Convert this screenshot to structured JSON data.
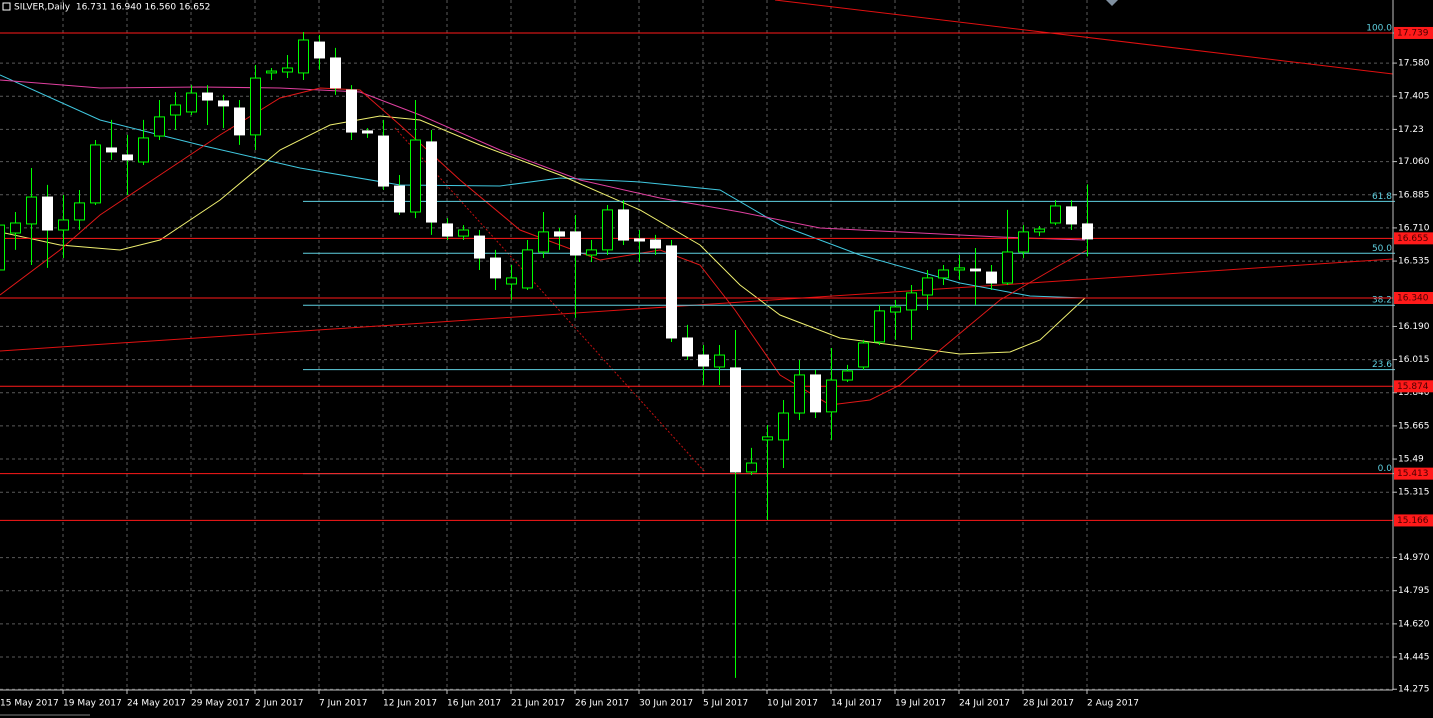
{
  "chart_data": {
    "type": "candlestick",
    "header": "SILVER,Daily  16.731 16.940 16.560 16.652",
    "categories": [
      "15 May 2017",
      null,
      null,
      null,
      "19 May 2017",
      null,
      null,
      null,
      "24 May 2017",
      null,
      null,
      null,
      "29 May 2017",
      null,
      null,
      null,
      "2 Jun 2017",
      null,
      null,
      null,
      "7 Jun 2017",
      null,
      null,
      null,
      "12 Jun 2017",
      null,
      null,
      null,
      "16 Jun 2017",
      null,
      null,
      null,
      "21 Jun 2017",
      null,
      null,
      null,
      "26 Jun 2017",
      null,
      null,
      null,
      "30 Jun 2017",
      null,
      null,
      null,
      "5 Jul 2017",
      null,
      null,
      null,
      "10 Jul 2017",
      null,
      null,
      null,
      "14 Jul 2017",
      null,
      null,
      null,
      "19 Jul 2017",
      null,
      null,
      null,
      "24 Jul 2017",
      null,
      null,
      null,
      "28 Jul 2017",
      null,
      null,
      null,
      "2 Aug 2017"
    ],
    "open": [
      16.488,
      16.683,
      16.731,
      16.873,
      16.699,
      16.752,
      16.842,
      17.132,
      17.095,
      17.058,
      17.195,
      17.306,
      17.322,
      17.422,
      17.38,
      17.343,
      17.201,
      17.528,
      17.533,
      17.528,
      17.691,
      17.607,
      17.438,
      17.222,
      17.195,
      16.931,
      16.794,
      17.164,
      16.731,
      16.667,
      16.667,
      16.551,
      16.414,
      16.393,
      16.583,
      16.689,
      16.689,
      16.567,
      16.594,
      16.805,
      16.652,
      16.646,
      16.615,
      16.129,
      16.039,
      15.976,
      15.971,
      15.422,
      15.591,
      15.591,
      15.733,
      15.934,
      15.739,
      15.907,
      15.976,
      16.108,
      16.266,
      16.277,
      16.356,
      16.446,
      16.488,
      16.493,
      16.477,
      16.419,
      16.583,
      16.689,
      16.736,
      16.821,
      16.731
    ],
    "high": [
      16.857,
      16.794,
      17.026,
      16.937,
      16.884,
      16.91,
      17.174,
      17.28,
      17.201,
      17.28,
      17.385,
      17.427,
      17.464,
      17.464,
      17.412,
      17.385,
      17.57,
      17.554,
      17.623,
      17.744,
      17.728,
      17.66,
      17.464,
      17.237,
      17.28,
      16.989,
      17.385,
      17.227,
      16.762,
      16.725,
      16.699,
      16.594,
      16.514,
      16.646,
      16.794,
      16.71,
      16.778,
      16.646,
      16.831,
      16.857,
      16.699,
      16.673,
      16.646,
      16.198,
      16.092,
      16.092,
      16.171,
      15.549,
      15.67,
      15.802,
      16.013,
      15.96,
      16.076,
      15.987,
      16.119,
      16.303,
      16.33,
      16.409,
      16.488,
      16.514,
      16.567,
      16.604,
      16.514,
      16.805,
      16.725,
      16.72,
      16.857,
      16.857,
      16.94
    ],
    "low": [
      16.33,
      16.594,
      16.514,
      16.499,
      16.551,
      16.699,
      16.831,
      17.069,
      16.884,
      17.042,
      17.174,
      17.227,
      17.306,
      17.253,
      17.237,
      17.148,
      17.121,
      17.491,
      17.501,
      17.491,
      17.544,
      17.412,
      17.174,
      17.185,
      16.91,
      16.778,
      16.762,
      16.673,
      16.646,
      16.646,
      16.488,
      16.382,
      16.33,
      16.382,
      16.551,
      16.594,
      16.235,
      16.53,
      16.567,
      16.62,
      16.53,
      16.567,
      16.108,
      16.013,
      15.881,
      15.881,
      14.335,
      15.406,
      15.168,
      15.443,
      15.696,
      15.707,
      15.591,
      15.897,
      15.96,
      16.092,
      16.119,
      16.119,
      16.277,
      16.409,
      16.435,
      16.303,
      16.382,
      16.409,
      16.551,
      16.667,
      16.725,
      16.699,
      16.56
    ],
    "close": [
      16.725,
      16.736,
      16.873,
      16.699,
      16.752,
      16.842,
      17.148,
      17.111,
      17.069,
      17.185,
      17.296,
      17.359,
      17.422,
      17.385,
      17.354,
      17.201,
      17.501,
      17.538,
      17.554,
      17.702,
      17.607,
      17.449,
      17.216,
      17.211,
      16.931,
      16.794,
      17.174,
      16.741,
      16.667,
      16.699,
      16.551,
      16.446,
      16.446,
      16.594,
      16.689,
      16.667,
      16.567,
      16.594,
      16.805,
      16.646,
      16.641,
      16.604,
      16.129,
      16.034,
      15.981,
      16.039,
      15.422,
      15.469,
      15.607,
      15.733,
      15.934,
      15.739,
      15.907,
      15.955,
      16.103,
      16.272,
      16.293,
      16.367,
      16.446,
      16.488,
      16.499,
      16.483,
      16.419,
      16.583,
      16.689,
      16.704,
      16.826,
      16.731,
      16.652
    ],
    "up_color": "#00ff00",
    "down_color": "#ffffff",
    "ylim": [
      14.271,
      17.913
    ],
    "yticks": [
      {
        "value": 17.58,
        "label": "17.580"
      },
      17.405,
      17.23,
      {
        "value": 17.06,
        "label": "17.060"
      },
      16.885,
      {
        "value": 16.71,
        "label": "16.710"
      },
      16.535,
      {
        "value": 16.19,
        "label": "16.190"
      },
      16.015,
      {
        "value": 15.84,
        "label": "15.840"
      },
      15.665,
      15.49,
      15.315,
      {
        "value": 14.97,
        "label": "14.970"
      },
      14.795,
      {
        "value": 14.62,
        "label": "14.620"
      },
      14.445,
      14.275
    ],
    "grid": true,
    "levels": [
      17.739,
      16.655,
      {
        "value": 16.34,
        "label": "16.340"
      },
      15.874,
      15.413,
      15.166
    ],
    "level_color": "#ff1a1a",
    "fib_color": "#5fd0e0",
    "fib": [
      {
        "level": {
          "value": 100,
          "label": "100.0"
        },
        "price": 17.739
      },
      {
        "level": 61.8,
        "price": 16.85
      },
      {
        "level": {
          "value": 50,
          "label": "50.0"
        },
        "price": 16.576
      },
      {
        "level": 38.2,
        "price": 16.302
      },
      {
        "level": 23.6,
        "price": 15.962
      },
      {
        "level": {
          "value": 0,
          "label": "0.0"
        },
        "price": 15.413
      }
    ]
  }
}
